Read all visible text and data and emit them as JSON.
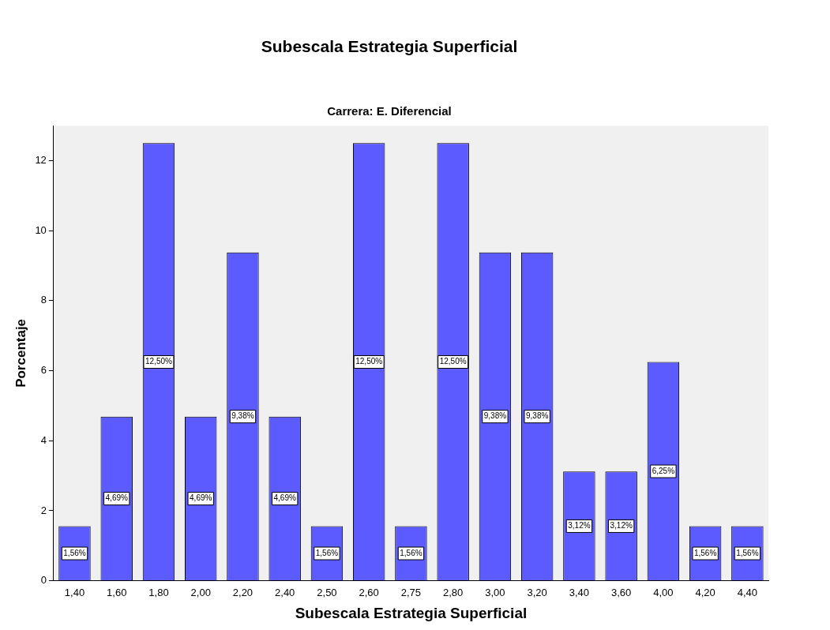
{
  "chart_data": {
    "type": "bar",
    "title": "Subescala Estrategia Superficial",
    "subtitle": "Carrera: E. Diferencial",
    "xlabel": "Subescala Estrategia Superficial",
    "ylabel": "Porcentaje",
    "categories": [
      "1,40",
      "1,60",
      "1,80",
      "2,00",
      "2,20",
      "2,40",
      "2,50",
      "2,60",
      "2,75",
      "2,80",
      "3,00",
      "3,20",
      "3,40",
      "3,60",
      "4,00",
      "4,20",
      "4,40"
    ],
    "values": [
      1.56,
      4.69,
      12.5,
      4.69,
      9.38,
      4.69,
      1.56,
      12.5,
      1.56,
      12.5,
      9.38,
      9.38,
      3.12,
      3.12,
      6.25,
      1.56,
      1.56
    ],
    "value_labels": [
      "1,56%",
      "4,69%",
      "12,50%",
      "4,69%",
      "9,38%",
      "4,69%",
      "1,56%",
      "12,50%",
      "1,56%",
      "12,50%",
      "9,38%",
      "9,38%",
      "3,12%",
      "3,12%",
      "6,25%",
      "1,56%",
      "1,56%"
    ],
    "color": "#5b5bff",
    "ylim": [
      0,
      13
    ],
    "yticks": [
      0,
      2,
      4,
      6,
      8,
      10,
      12
    ],
    "grid": false,
    "legend": false
  }
}
